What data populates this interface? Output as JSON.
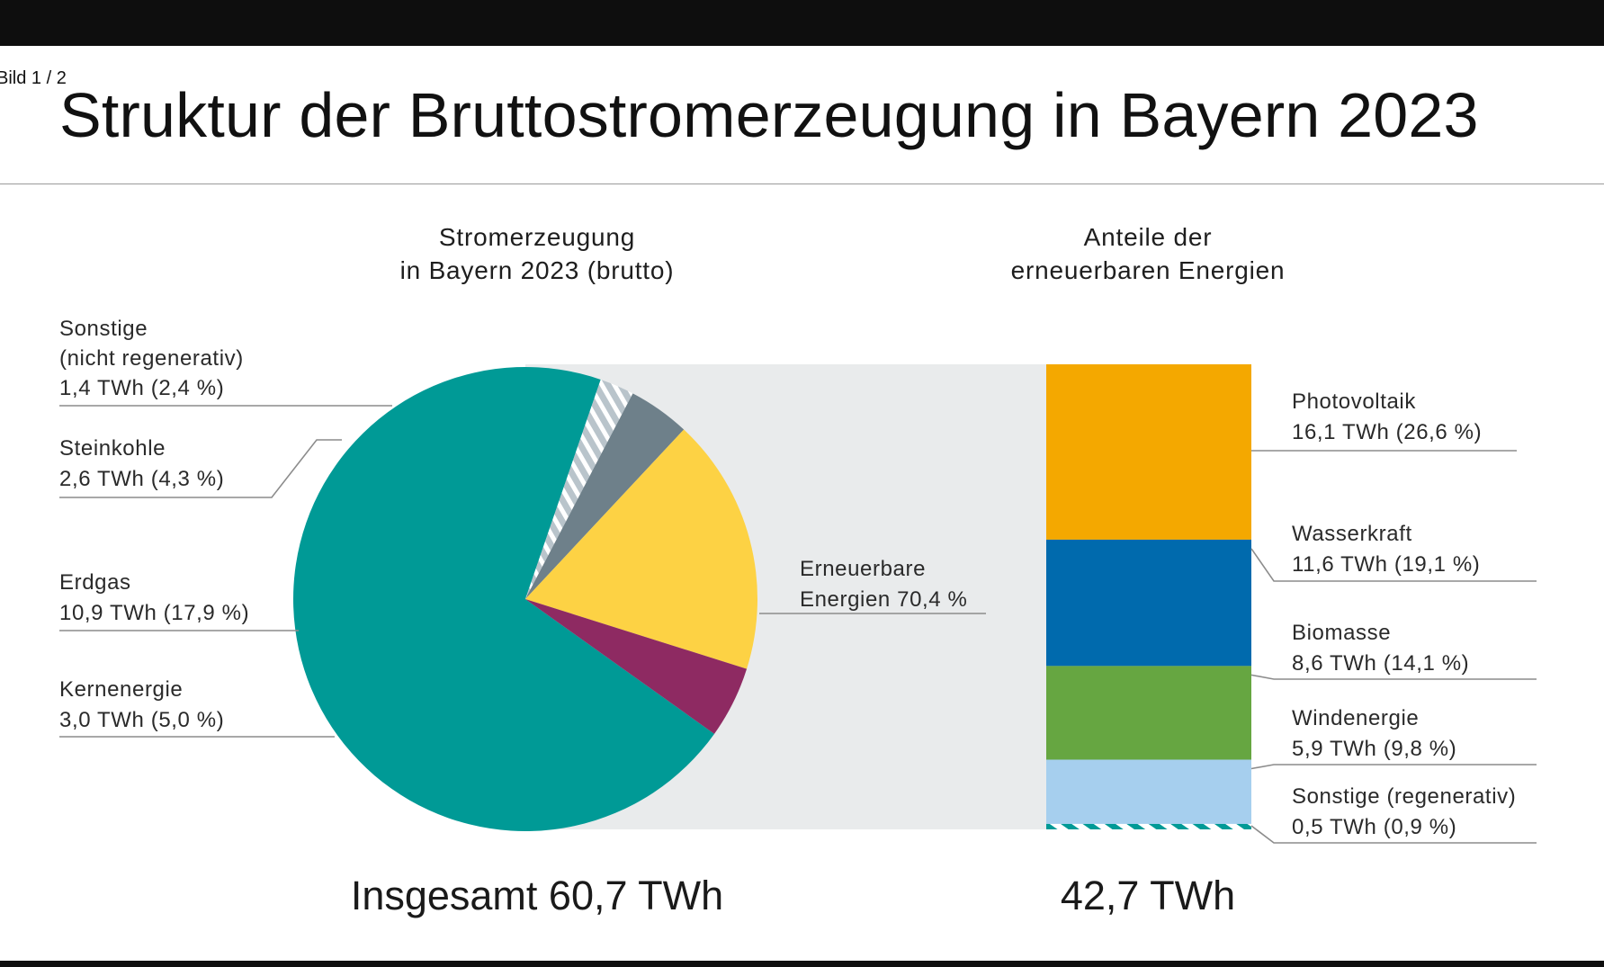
{
  "viewer": {
    "counter": "Bild 1 / 2"
  },
  "title": "Struktur der Bruttostromerzeugung in Bayern 2023",
  "chart_data": [
    {
      "type": "pie",
      "title_lines": [
        "Stromerzeugung",
        "in Bayern 2023 (brutto)"
      ],
      "total_label": "Insgesamt 60,7 TWh",
      "unit": "TWh",
      "slices": [
        {
          "name": "Erneuerbare Energien",
          "label_lines": [
            "Erneuerbare",
            "Energien  70,4 %"
          ],
          "value": 42.7,
          "percent": 70.4,
          "color": "#009a96",
          "pattern": ""
        },
        {
          "name": "Sonstige (nicht regenerativ)",
          "label_lines": [
            "Sonstige",
            "(nicht regenerativ)",
            "1,4 TWh (2,4 %)"
          ],
          "value": 1.4,
          "percent": 2.4,
          "color": "#b9c4cb",
          "pattern": "hatch-white"
        },
        {
          "name": "Steinkohle",
          "label_lines": [
            "Steinkohle",
            "2,6 TWh (4,3 %)"
          ],
          "value": 2.6,
          "percent": 4.3,
          "color": "#6e808a",
          "pattern": ""
        },
        {
          "name": "Erdgas",
          "label_lines": [
            "Erdgas",
            "10,9 TWh (17,9 %)"
          ],
          "value": 10.9,
          "percent": 17.9,
          "color": "#fdd244",
          "pattern": ""
        },
        {
          "name": "Kernenergie",
          "label_lines": [
            "Kernenergie",
            "3,0 TWh (5,0 %)"
          ],
          "value": 3.0,
          "percent": 5.0,
          "color": "#8e2a62",
          "pattern": ""
        }
      ]
    },
    {
      "type": "bar",
      "stacked": true,
      "title_lines": [
        "Anteile der",
        "erneuerbaren Energien"
      ],
      "total_label": "42,7 TWh",
      "unit": "TWh",
      "segments": [
        {
          "name": "Photovoltaik",
          "label_lines": [
            "Photovoltaik",
            "16,1 TWh (26,6 %)"
          ],
          "value": 16.1,
          "percent": 26.6,
          "color": "#f4a800",
          "pattern": ""
        },
        {
          "name": "Wasserkraft",
          "label_lines": [
            "Wasserkraft",
            "11,6 TWh (19,1 %)"
          ],
          "value": 11.6,
          "percent": 19.1,
          "color": "#006aad",
          "pattern": ""
        },
        {
          "name": "Biomasse",
          "label_lines": [
            "Biomasse",
            "8,6 TWh (14,1 %)"
          ],
          "value": 8.6,
          "percent": 14.1,
          "color": "#66a641",
          "pattern": ""
        },
        {
          "name": "Windenergie",
          "label_lines": [
            "Windenergie",
            "5,9 TWh (9,8 %)"
          ],
          "value": 5.9,
          "percent": 9.8,
          "color": "#a6cfee",
          "pattern": ""
        },
        {
          "name": "Sonstige (regenerativ)",
          "label_lines": [
            "Sonstige (regenerativ)",
            "0,5 TWh (0,9 %)"
          ],
          "value": 0.5,
          "percent": 0.9,
          "color": "#a6cfee",
          "pattern": "dash-teal"
        }
      ]
    }
  ],
  "colors": {
    "connector_band": "#e9ebec",
    "leader_line": "#8c8c8c",
    "teal": "#009a96"
  }
}
